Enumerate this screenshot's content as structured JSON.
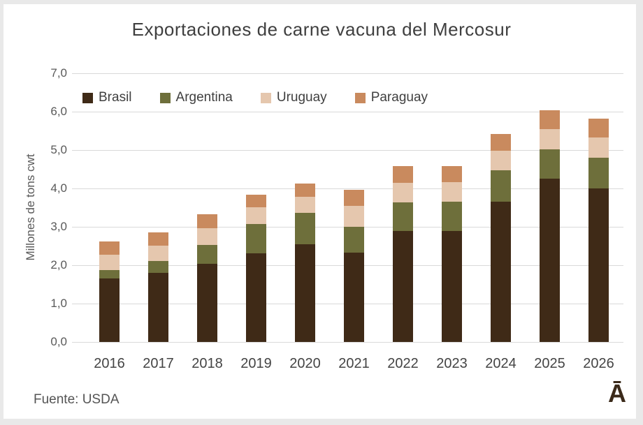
{
  "title": "Exportaciones de carne vacuna del Mercosur",
  "footer": {
    "source_label": "Fuente: USDA",
    "logo_glyph": "Ā"
  },
  "colors": {
    "background_frame": "#e9e9e9",
    "plot_background": "#ffffff",
    "gridline": "#d9d9d9",
    "title_text": "#3f3f3f",
    "axis_text": "#595959",
    "logo": "#3b2a1a"
  },
  "chart_data": {
    "type": "bar",
    "stacked": true,
    "title": "Exportaciones de carne vacuna del Mercosur",
    "xlabel": "",
    "ylabel": "Millones de tons cwt",
    "ylim": [
      0,
      7
    ],
    "ytick_step": 1,
    "ytick_labels": [
      "0,0",
      "1,0",
      "2,0",
      "3,0",
      "4,0",
      "5,0",
      "6,0",
      "7,0"
    ],
    "grid": "horizontal",
    "legend_position": "top-left",
    "categories": [
      "2016",
      "2017",
      "2018",
      "2019",
      "2020",
      "2021",
      "2022",
      "2023",
      "2024",
      "2025",
      "2026"
    ],
    "series": [
      {
        "name": "Brasil",
        "color": "#3f2a17",
        "values": [
          1.65,
          1.8,
          2.02,
          2.31,
          2.54,
          2.32,
          2.89,
          2.89,
          3.65,
          4.25,
          4.0
        ]
      },
      {
        "name": "Argentina",
        "color": "#6e6f3b",
        "values": [
          0.23,
          0.31,
          0.5,
          0.76,
          0.82,
          0.67,
          0.75,
          0.77,
          0.83,
          0.77,
          0.8
        ]
      },
      {
        "name": "Uruguay",
        "color": "#e5c7ae",
        "values": [
          0.4,
          0.4,
          0.44,
          0.44,
          0.42,
          0.55,
          0.5,
          0.51,
          0.5,
          0.52,
          0.53
        ]
      },
      {
        "name": "Paraguay",
        "color": "#c98a5e",
        "values": [
          0.34,
          0.34,
          0.36,
          0.33,
          0.34,
          0.42,
          0.44,
          0.42,
          0.44,
          0.5,
          0.49
        ]
      }
    ],
    "totals": [
      2.62,
      2.85,
      3.32,
      3.84,
      4.12,
      3.96,
      4.58,
      4.59,
      5.42,
      6.04,
      5.82
    ]
  }
}
